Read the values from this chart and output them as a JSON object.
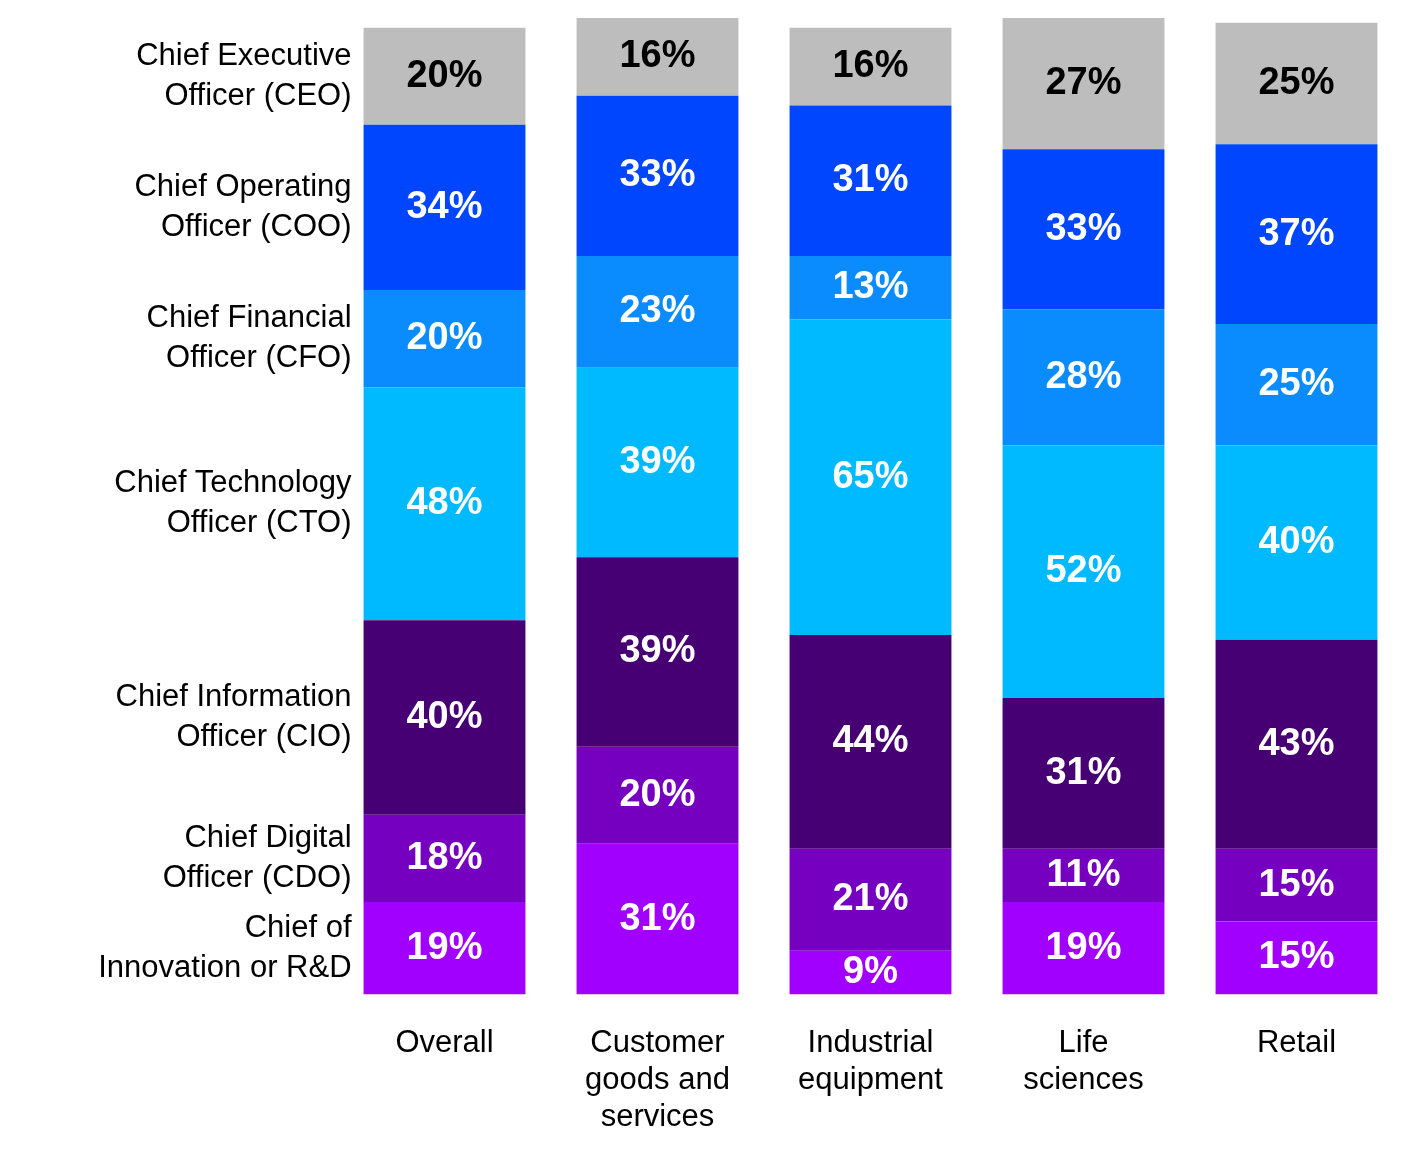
{
  "chart_data": {
    "type": "bar",
    "stacked": true,
    "categories": [
      "Overall",
      "Customer goods and services",
      "Industrial equipment",
      "Life sciences",
      "Retail"
    ],
    "series": [
      {
        "name": "Chief of Innovation or R&D",
        "color": "#a100ff",
        "values": [
          19,
          31,
          9,
          19,
          15
        ],
        "value_labels": [
          "19%",
          "31%",
          "9%",
          "19%",
          "15%"
        ]
      },
      {
        "name": "Chief Digital Officer (CDO)",
        "color": "#7500c0",
        "values": [
          18,
          20,
          21,
          11,
          15
        ],
        "value_labels": [
          "18%",
          "20%",
          "21%",
          "11%",
          "15%"
        ]
      },
      {
        "name": "Chief Information Officer (CIO)",
        "color": "#460073",
        "values": [
          40,
          39,
          44,
          31,
          43
        ],
        "value_labels": [
          "40%",
          "39%",
          "44%",
          "31%",
          "43%"
        ]
      },
      {
        "name": "Chief Technology Officer (CTO)",
        "color": "#00baff",
        "values": [
          48,
          39,
          65,
          52,
          40
        ],
        "value_labels": [
          "48%",
          "39%",
          "65%",
          "52%",
          "40%"
        ]
      },
      {
        "name": "Chief Financial Officer (CFO)",
        "color": "#0a8cff",
        "values": [
          20,
          23,
          13,
          28,
          25
        ],
        "value_labels": [
          "20%",
          "23%",
          "13%",
          "28%",
          "25%"
        ]
      },
      {
        "name": "Chief Operating Officer (COO)",
        "color": "#0046ff",
        "values": [
          34,
          33,
          31,
          33,
          37
        ],
        "value_labels": [
          "34%",
          "33%",
          "31%",
          "33%",
          "37%"
        ]
      },
      {
        "name": "Chief Executive Officer (CEO)",
        "color": "#bdbdbd",
        "values": [
          20,
          16,
          16,
          27,
          25
        ],
        "value_labels": [
          "20%",
          "16%",
          "16%",
          "27%",
          "25%"
        ]
      }
    ]
  }
}
